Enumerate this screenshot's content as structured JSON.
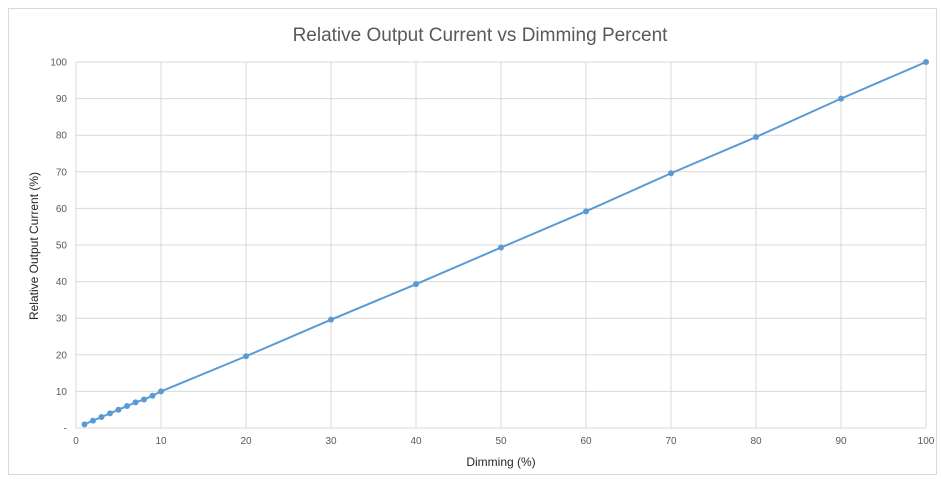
{
  "chart_data": {
    "type": "line",
    "title": "Relative Output Current vs Dimming Percent",
    "xlabel": "Dimming (%)",
    "ylabel": "Relative Output Current (%)",
    "xlim": [
      0,
      100
    ],
    "ylim": [
      0,
      100
    ],
    "xticks": [
      "0",
      "10",
      "20",
      "30",
      "40",
      "50",
      "60",
      "70",
      "80",
      "90",
      "100"
    ],
    "yticks": [
      "-",
      "10",
      "20",
      "30",
      "40",
      "50",
      "60",
      "70",
      "80",
      "90",
      "100"
    ],
    "grid": true,
    "legend": "none",
    "series": [
      {
        "color": "#5b9bd5",
        "x": [
          1,
          2,
          3,
          4,
          5,
          6,
          7,
          8,
          9,
          10,
          20,
          30,
          40,
          50,
          60,
          70,
          80,
          90,
          100
        ],
        "y": [
          1,
          2,
          3,
          4,
          5,
          6,
          7,
          7.8,
          8.8,
          10,
          19.6,
          29.6,
          39.3,
          49.3,
          59.2,
          69.6,
          79.5,
          90,
          100
        ]
      }
    ]
  }
}
